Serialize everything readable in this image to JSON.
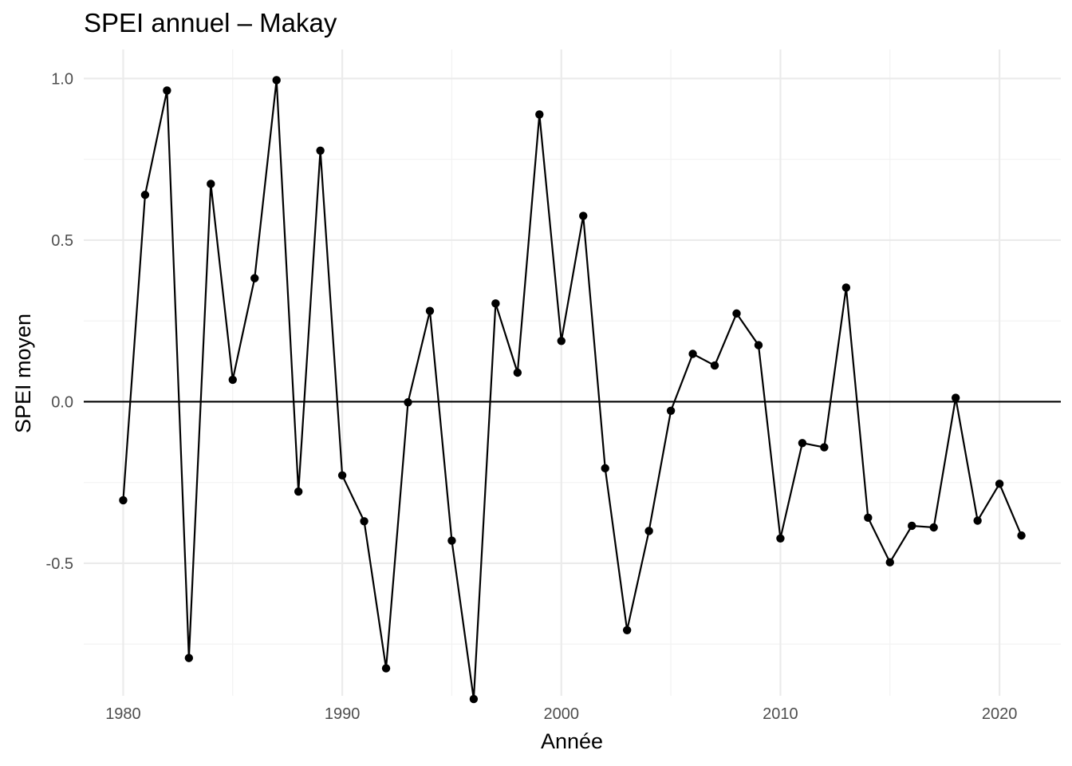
{
  "chart_data": {
    "type": "line",
    "title": "SPEI annuel – Makay",
    "xlabel": "Année",
    "ylabel": "SPEI moyen",
    "xlim": [
      1978.2,
      2022.8
    ],
    "ylim": [
      -0.91,
      1.09
    ],
    "x_ticks": [
      1980,
      1990,
      2000,
      2010,
      2020
    ],
    "x_minor": [
      1985,
      1995,
      2005,
      2015
    ],
    "y_ticks": [
      -0.5,
      0.0,
      0.5,
      1.0
    ],
    "y_tick_labels": [
      "-0.5",
      "0.0",
      "0.5",
      "1.0"
    ],
    "y_minor": [
      -0.75,
      -0.25,
      0.25,
      0.75
    ],
    "hline": 0,
    "grid": true,
    "legend": "none",
    "series": [
      {
        "x": [
          1980,
          1981,
          1982,
          1983,
          1984,
          1985,
          1986,
          1987,
          1988,
          1989,
          1990,
          1991,
          1992,
          1993,
          1994,
          1995,
          1996,
          1997,
          1998,
          1999,
          2000,
          2001,
          2002,
          2003,
          2004,
          2005,
          2006,
          2007,
          2008,
          2009,
          2010,
          2011,
          2012,
          2013,
          2014,
          2015,
          2016,
          2017,
          2018,
          2019,
          2020,
          2021
        ],
        "values": [
          -0.305,
          0.64,
          0.963,
          -0.793,
          0.674,
          0.068,
          0.382,
          0.995,
          -0.278,
          0.777,
          -0.228,
          -0.37,
          -0.825,
          -0.002,
          0.281,
          -0.43,
          -0.92,
          0.304,
          0.09,
          0.889,
          0.188,
          0.575,
          -0.206,
          -0.707,
          -0.4,
          -0.028,
          0.148,
          0.112,
          0.273,
          0.175,
          -0.423,
          -0.128,
          -0.141,
          0.353,
          -0.359,
          -0.497,
          -0.384,
          -0.389,
          0.012,
          -0.368,
          -0.254,
          -0.414
        ]
      }
    ]
  }
}
